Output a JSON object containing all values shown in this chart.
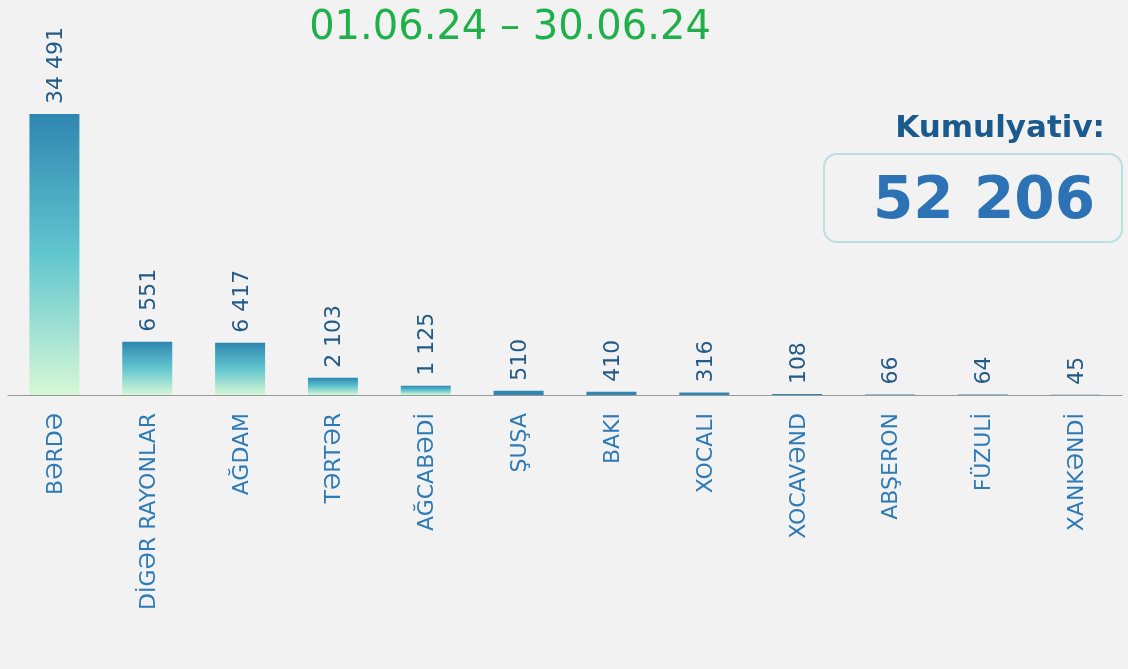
{
  "chart_data": {
    "type": "bar",
    "title": "01.06.24 – 30.06.24",
    "categories": [
      "BƏRDƏ",
      "DİGƏR RAYONLAR",
      "AĞDAM",
      "TƏRTƏR",
      "AĞCABƏDİ",
      "ŞUŞA",
      "BAKI",
      "XOCALI",
      "XOCAVƏND",
      "ABŞERON",
      "FÜZULİ",
      "XANKƏNDİ"
    ],
    "values": [
      34491,
      6551,
      6417,
      2103,
      1125,
      510,
      410,
      316,
      108,
      66,
      64,
      45
    ],
    "value_labels": [
      "34 491",
      "6 551",
      "6 417",
      "2 103",
      "1 125",
      "510",
      "410",
      "316",
      "108",
      "66",
      "64",
      "45"
    ],
    "color": "#2f86b0",
    "annotations": [
      "Kumulyativ:",
      "52 206"
    ]
  }
}
